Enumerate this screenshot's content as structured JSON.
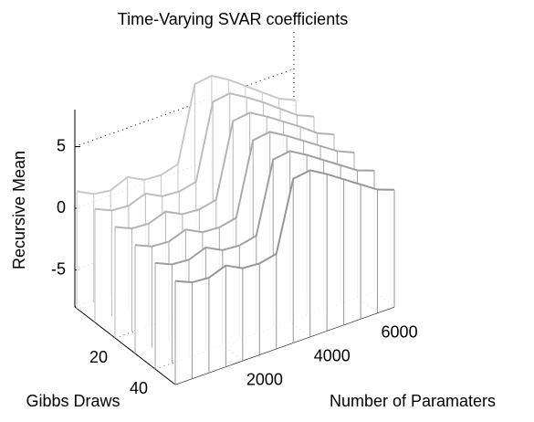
{
  "chart_data": {
    "type": "waterfall3d",
    "title": "Time-Varying SVAR coefficients",
    "xlabel": "Number of Paramaters",
    "ylabel": "Gibbs Draws",
    "zlabel": "Recursive Mean",
    "x": [
      0,
      500,
      1000,
      1500,
      2000,
      2500,
      3000,
      3500,
      4000,
      4500,
      5000,
      5500,
      6000,
      6500
    ],
    "draws": [
      1,
      10,
      20,
      30,
      40,
      50
    ],
    "series": [
      {
        "color": "#c8c8c8",
        "values": [
          1.5,
          0.8,
          0.6,
          1.2,
          0.5,
          0.4,
          0.8,
          6.8,
          7.0,
          6.2,
          5.2,
          4.2,
          3.2,
          2.6
        ]
      },
      {
        "color": "#bdbdbd",
        "values": [
          1.2,
          0.6,
          0.5,
          1.0,
          0.3,
          0.2,
          0.5,
          6.5,
          6.7,
          5.9,
          5.0,
          4.0,
          3.0,
          2.4
        ]
      },
      {
        "color": "#b4b4b4",
        "values": [
          1.0,
          0.4,
          0.3,
          0.8,
          0.1,
          0.0,
          0.3,
          6.2,
          6.4,
          5.6,
          4.7,
          3.8,
          2.8,
          2.2
        ]
      },
      {
        "color": "#aaaaaa",
        "values": [
          0.8,
          0.2,
          0.1,
          0.6,
          -0.1,
          -0.2,
          0.1,
          5.9,
          6.1,
          5.3,
          4.4,
          3.5,
          2.6,
          2.0
        ]
      },
      {
        "color": "#a0a0a0",
        "values": [
          0.6,
          0.0,
          -0.1,
          0.4,
          -0.3,
          -0.4,
          -0.1,
          5.6,
          5.8,
          5.0,
          4.1,
          3.2,
          2.3,
          1.8
        ]
      },
      {
        "color": "#969696",
        "values": [
          0.4,
          -0.2,
          -0.3,
          0.2,
          -0.5,
          -0.6,
          -0.3,
          5.3,
          5.5,
          4.7,
          3.8,
          2.9,
          2.0,
          1.5
        ]
      }
    ],
    "xlim": [
      0,
      6500
    ],
    "ylim": [
      0,
      50
    ],
    "zlim": [
      -8,
      8
    ],
    "xticks": [
      2000,
      4000,
      6000
    ],
    "yticks": [
      20,
      40
    ],
    "zticks": [
      -5,
      0,
      5
    ],
    "grid": true
  }
}
